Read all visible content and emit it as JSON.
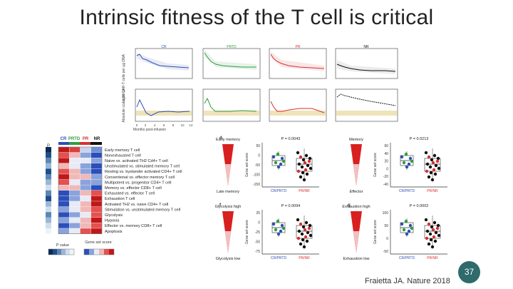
{
  "slide": {
    "title": "Intrinsic fitness of the T cell is critical",
    "citation": "Fraietta JA. Nature 2018",
    "page_number": "37"
  },
  "colors": {
    "cr": "#2e4fb0",
    "prtd": "#2e9e3e",
    "pr": "#d93030",
    "nr": "#111111",
    "badge": "#2f6a6c"
  },
  "top_panel": {
    "groups": [
      "CR",
      "PRTD",
      "PR",
      "NR"
    ],
    "row1_ylabel": "log10 CAR-T cells per µg DNA",
    "row2_ylabel": "Absolute count per µl",
    "xlabel": "Months post-infusion",
    "xticks": [
      "0",
      "2",
      "4",
      "6",
      "8",
      "10",
      "12"
    ]
  },
  "heatmap": {
    "column_labels": [
      "CR",
      "PRTD",
      "PR",
      "NR"
    ],
    "p_label": "P",
    "rows": [
      "Early memory T cell",
      "Nonexhausted T cell",
      "Naive vs. activated TH2 Cd4+ T cell",
      "Unstimulated vs. stimulated memory T cell",
      "Resting vs. bystander activated CD4+ T cell",
      "Conventional vs. effector memory T cell",
      "Multipotent vs. progenitor CD4+ T cell",
      "Memory vs. effector CD8+ T cell",
      "Exhausted vs. effector T cell",
      "Exhaustion T cell",
      "Activated TH2 vs. naive CD4+ T cell",
      "Stimulation vs. unstimulated memory T cell",
      "Glycolysis",
      "Hypoxia",
      "Effector vs. memory CD8+ T cell",
      "Apoptosis"
    ],
    "legend_p_title": "P value",
    "legend_score_title": "Gene set score"
  },
  "boxplots": [
    {
      "panel": "d",
      "top_label": "Early memory",
      "bottom_label": "Late memory",
      "ylabel": "Gene set score",
      "p_value": "P = 0.0043",
      "yticks": [
        "50",
        "0",
        "-50",
        "-100",
        "-150"
      ],
      "left_group": "CR/PRTD",
      "right_group": "PR/NR"
    },
    {
      "panel": "",
      "top_label": "Memory",
      "bottom_label": "Effector",
      "ylabel": "Gene set score",
      "p_value": "P = 0.0213",
      "yticks": [
        "60",
        "40",
        "20",
        "0",
        "-20",
        "-40"
      ],
      "left_group": "CR/PRTD",
      "right_group": "PR/NR"
    },
    {
      "panel": "f",
      "top_label": "Glycolysis high",
      "bottom_label": "Glycolysis low",
      "ylabel": "Gene set score",
      "p_value": "P = 0.0094",
      "yticks": [
        "25",
        "0",
        "-25",
        "-50",
        "-75"
      ],
      "left_group": "CR/PRTD",
      "right_group": "PR/NR"
    },
    {
      "panel": "g",
      "top_label": "Exhaustion high",
      "bottom_label": "Exhaustion low",
      "ylabel": "Gene set score",
      "p_value": "P = 0.0002",
      "yticks": [
        "100",
        "50",
        "0",
        "-50"
      ],
      "left_group": "CR/PRTD",
      "right_group": "PR/NR"
    }
  ]
}
